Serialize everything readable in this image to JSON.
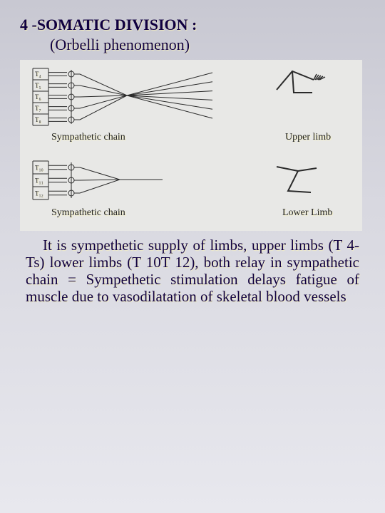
{
  "title": "4 -SOMATIC DIVISION :",
  "subtitle": "(Orbelli  phenomenon)",
  "diagram": {
    "bg": "#e8e8e6",
    "upper": {
      "segments": [
        "T₄",
        "T₅",
        "T₆",
        "T₇",
        "T₈"
      ],
      "chain_label": "Sympathetic chain",
      "limb_label": "Upper limb"
    },
    "lower": {
      "segments": [
        "T₁₀",
        "T₁₁",
        "T₁₂"
      ],
      "chain_label": "Sympathetic chain",
      "limb_label": "Lower Limb"
    },
    "stroke": "#2a2a2a",
    "text_color": "#222"
  },
  "body": "It is sympethetic supply of limbs, upper limbs (T 4- Ts) lower limbs (T 10T 12), both relay in sympathetic chain = Sympethetic stimulation delays fatigue of muscle due to vasodilatation of skeletal blood vessels"
}
